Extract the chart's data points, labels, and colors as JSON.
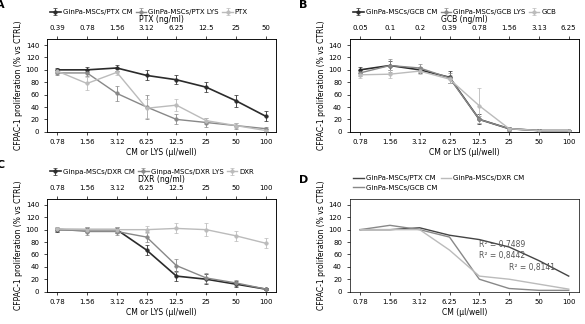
{
  "panel_A": {
    "label": "A",
    "x_bottom": [
      0.78,
      1.56,
      3.12,
      6.25,
      12.5,
      25,
      50,
      100
    ],
    "x_top": [
      0.39,
      0.78,
      1.56,
      3.12,
      6.25,
      12.5,
      25,
      50
    ],
    "x_top_label": "PTX (ng/ml)",
    "x_bottom_label": "CM or LYS (µl/well)",
    "ylabel": "CFPAC-1 proliferation (% vs CTRL)",
    "ylim": [
      0,
      150
    ],
    "yticks": [
      0,
      20,
      40,
      60,
      80,
      100,
      120,
      140
    ],
    "series": [
      {
        "label": "GinPa-MSCs/PTX CM",
        "y": [
          100,
          100,
          103,
          91,
          84,
          72,
          50,
          25
        ],
        "yerr": [
          3,
          4,
          5,
          8,
          7,
          8,
          10,
          8
        ],
        "color": "#2b2b2b",
        "marker": "o",
        "linestyle": "-",
        "linewidth": 1.2
      },
      {
        "label": "GinPa-MSCs/PTX LYS",
        "y": [
          95,
          95,
          62,
          40,
          20,
          15,
          10,
          5
        ],
        "yerr": [
          4,
          5,
          12,
          20,
          8,
          8,
          5,
          3
        ],
        "color": "#888888",
        "marker": "o",
        "linestyle": "-",
        "linewidth": 1.0
      },
      {
        "label": "PTX",
        "y": [
          98,
          78,
          96,
          38,
          43,
          18,
          10,
          2
        ],
        "yerr": [
          3,
          10,
          5,
          15,
          10,
          5,
          4,
          2
        ],
        "color": "#bbbbbb",
        "marker": "o",
        "linestyle": "-",
        "linewidth": 1.0
      }
    ]
  },
  "panel_B": {
    "label": "B",
    "x_bottom": [
      0.78,
      1.56,
      3.12,
      6.25,
      12.5,
      25,
      50,
      100
    ],
    "x_top": [
      0.05,
      0.1,
      0.2,
      0.39,
      0.78,
      1.56,
      3.13,
      6.25
    ],
    "x_top_label": "GCB (ng/ml)",
    "x_bottom_label": "CM or LYS (µl/well)",
    "ylabel": "CFPAC-1 proliferation (% vs CTRL)",
    "ylim": [
      0,
      150
    ],
    "yticks": [
      0,
      20,
      40,
      60,
      80,
      100,
      120,
      140
    ],
    "series": [
      {
        "label": "GinPa-MSCs/GCB CM",
        "y": [
          100,
          107,
          100,
          88,
          20,
          5,
          2,
          2
        ],
        "yerr": [
          5,
          8,
          5,
          10,
          8,
          3,
          2,
          1
        ],
        "color": "#2b2b2b",
        "marker": "o",
        "linestyle": "-",
        "linewidth": 1.2
      },
      {
        "label": "GinPa-MSCs/GCB LYS",
        "y": [
          95,
          107,
          103,
          87,
          20,
          5,
          2,
          2
        ],
        "yerr": [
          5,
          10,
          7,
          8,
          5,
          2,
          1,
          1
        ],
        "color": "#888888",
        "marker": "o",
        "linestyle": "-",
        "linewidth": 1.0
      },
      {
        "label": "GCB",
        "y": [
          92,
          93,
          98,
          85,
          42,
          5,
          2,
          2
        ],
        "yerr": [
          5,
          6,
          5,
          7,
          28,
          3,
          1,
          1
        ],
        "color": "#bbbbbb",
        "marker": "o",
        "linestyle": "-",
        "linewidth": 1.0
      }
    ]
  },
  "panel_C": {
    "label": "C",
    "x_bottom": [
      0.78,
      1.56,
      3.12,
      6.25,
      12.5,
      25,
      50,
      100
    ],
    "x_top": [
      0.78,
      1.56,
      3.12,
      6.25,
      12.5,
      25,
      50,
      100
    ],
    "x_top_label": "DXR (ng/ml)",
    "x_bottom_label": "CM or LYS (µl/well)",
    "ylabel": "CFPAC-1 proliferation (% vs CTRL)",
    "ylim": [
      0,
      150
    ],
    "yticks": [
      0,
      20,
      40,
      60,
      80,
      100,
      120,
      140
    ],
    "series": [
      {
        "label": "Ginpa-MSCs/DXR CM",
        "y": [
          100,
          100,
          100,
          67,
          25,
          20,
          12,
          4
        ],
        "yerr": [
          3,
          4,
          5,
          8,
          8,
          8,
          5,
          2
        ],
        "color": "#2b2b2b",
        "marker": "o",
        "linestyle": "-",
        "linewidth": 1.2
      },
      {
        "label": "Ginpa-MSCs/DXR LYS",
        "y": [
          101,
          97,
          97,
          88,
          42,
          22,
          14,
          4
        ],
        "yerr": [
          4,
          5,
          5,
          8,
          10,
          8,
          5,
          2
        ],
        "color": "#888888",
        "marker": "o",
        "linestyle": "-",
        "linewidth": 1.0
      },
      {
        "label": "DXR",
        "y": [
          101,
          100,
          100,
          100,
          102,
          100,
          90,
          78
        ],
        "yerr": [
          3,
          4,
          5,
          6,
          8,
          10,
          8,
          8
        ],
        "color": "#bbbbbb",
        "marker": "o",
        "linestyle": "-",
        "linewidth": 1.0
      }
    ]
  },
  "panel_D": {
    "label": "D",
    "x_bottom": [
      0.78,
      1.56,
      3.12,
      6.25,
      12.5,
      25,
      50,
      100
    ],
    "x_bottom_label": "CM (µl/well)",
    "ylabel": "CFPAC-1 proliferation (% vs CTRL)",
    "ylim": [
      0,
      150
    ],
    "yticks": [
      0,
      20,
      40,
      60,
      80,
      100,
      120,
      140
    ],
    "annotations": [
      {
        "text": "R² = 0,7489",
        "xi": 4,
        "y": 72
      },
      {
        "text": "R² = 0,8442",
        "xi": 4,
        "y": 55
      },
      {
        "text": "R² = 0,8141",
        "xi": 5,
        "y": 35
      }
    ],
    "series": [
      {
        "label": "GinPa-MSCs/PTX CM",
        "y": [
          100,
          100,
          103,
          91,
          84,
          72,
          50,
          25
        ],
        "color": "#444444",
        "linestyle": "-",
        "linewidth": 1.0
      },
      {
        "label": "GinPa-MSCs/GCB CM",
        "y": [
          100,
          107,
          100,
          88,
          20,
          5,
          2,
          2
        ],
        "color": "#888888",
        "linestyle": "-",
        "linewidth": 1.0
      },
      {
        "label": "GinPa-MSCs/DXR CM",
        "y": [
          100,
          100,
          100,
          67,
          25,
          20,
          12,
          4
        ],
        "color": "#bbbbbb",
        "linestyle": "-",
        "linewidth": 1.0
      }
    ]
  },
  "figure_bg": "#ffffff",
  "axes_bg": "#ffffff",
  "font_size_labels": 5.5,
  "font_size_ticks": 5,
  "font_size_legend": 5,
  "font_size_panel_label": 8,
  "font_size_annotation": 5.5
}
